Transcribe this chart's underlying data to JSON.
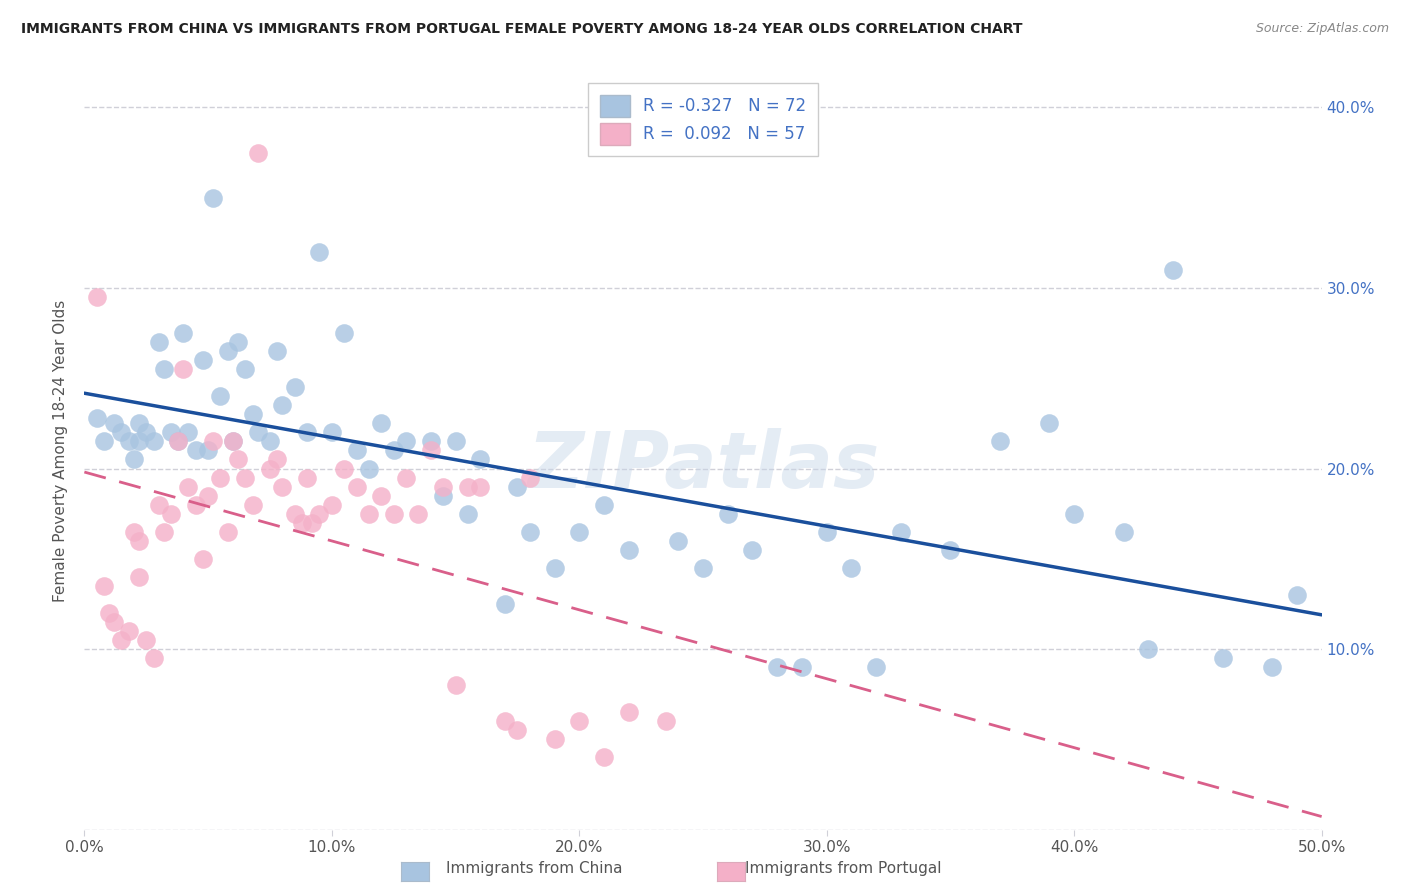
{
  "title": "IMMIGRANTS FROM CHINA VS IMMIGRANTS FROM PORTUGAL FEMALE POVERTY AMONG 18-24 YEAR OLDS CORRELATION CHART",
  "source": "Source: ZipAtlas.com",
  "ylabel": "Female Poverty Among 18-24 Year Olds",
  "xlim": [
    0.0,
    0.5
  ],
  "ylim": [
    0.0,
    0.42
  ],
  "xticks": [
    0.0,
    0.1,
    0.2,
    0.3,
    0.4,
    0.5
  ],
  "xticklabels": [
    "0.0%",
    "10.0%",
    "20.0%",
    "30.0%",
    "40.0%",
    "50.0%"
  ],
  "yticks": [
    0.0,
    0.1,
    0.2,
    0.3,
    0.4
  ],
  "yticklabels_right": [
    "",
    "10.0%",
    "20.0%",
    "30.0%",
    "40.0%"
  ],
  "china_R": "-0.327",
  "china_N": "72",
  "portugal_R": "0.092",
  "portugal_N": "57",
  "china_color": "#a8c4e0",
  "portugal_color": "#f4b0c8",
  "china_line_color": "#1a4f9c",
  "portugal_line_color": "#d95f8a",
  "legend_label_china": "Immigrants from China",
  "legend_label_portugal": "Immigrants from Portugal",
  "china_x": [
    0.005,
    0.008,
    0.012,
    0.015,
    0.018,
    0.02,
    0.022,
    0.022,
    0.025,
    0.028,
    0.03,
    0.032,
    0.035,
    0.038,
    0.04,
    0.042,
    0.045,
    0.048,
    0.05,
    0.052,
    0.055,
    0.058,
    0.06,
    0.062,
    0.065,
    0.068,
    0.07,
    0.075,
    0.078,
    0.08,
    0.085,
    0.09,
    0.095,
    0.1,
    0.105,
    0.11,
    0.115,
    0.12,
    0.125,
    0.13,
    0.14,
    0.145,
    0.15,
    0.155,
    0.16,
    0.17,
    0.175,
    0.18,
    0.19,
    0.2,
    0.21,
    0.22,
    0.24,
    0.25,
    0.26,
    0.27,
    0.28,
    0.29,
    0.3,
    0.31,
    0.32,
    0.33,
    0.35,
    0.37,
    0.39,
    0.4,
    0.42,
    0.43,
    0.44,
    0.46,
    0.48,
    0.49
  ],
  "china_y": [
    0.228,
    0.215,
    0.225,
    0.22,
    0.215,
    0.205,
    0.225,
    0.215,
    0.22,
    0.215,
    0.27,
    0.255,
    0.22,
    0.215,
    0.275,
    0.22,
    0.21,
    0.26,
    0.21,
    0.35,
    0.24,
    0.265,
    0.215,
    0.27,
    0.255,
    0.23,
    0.22,
    0.215,
    0.265,
    0.235,
    0.245,
    0.22,
    0.32,
    0.22,
    0.275,
    0.21,
    0.2,
    0.225,
    0.21,
    0.215,
    0.215,
    0.185,
    0.215,
    0.175,
    0.205,
    0.125,
    0.19,
    0.165,
    0.145,
    0.165,
    0.18,
    0.155,
    0.16,
    0.145,
    0.175,
    0.155,
    0.09,
    0.09,
    0.165,
    0.145,
    0.09,
    0.165,
    0.155,
    0.215,
    0.225,
    0.175,
    0.165,
    0.1,
    0.31,
    0.095,
    0.09,
    0.13
  ],
  "portugal_x": [
    0.005,
    0.008,
    0.01,
    0.012,
    0.015,
    0.018,
    0.02,
    0.022,
    0.022,
    0.025,
    0.028,
    0.03,
    0.032,
    0.035,
    0.038,
    0.04,
    0.042,
    0.045,
    0.048,
    0.05,
    0.052,
    0.055,
    0.058,
    0.06,
    0.062,
    0.065,
    0.068,
    0.07,
    0.075,
    0.078,
    0.08,
    0.085,
    0.088,
    0.09,
    0.092,
    0.095,
    0.1,
    0.105,
    0.11,
    0.115,
    0.12,
    0.125,
    0.13,
    0.135,
    0.14,
    0.145,
    0.15,
    0.155,
    0.16,
    0.17,
    0.175,
    0.18,
    0.19,
    0.2,
    0.21,
    0.22,
    0.235
  ],
  "portugal_y": [
    0.295,
    0.135,
    0.12,
    0.115,
    0.105,
    0.11,
    0.165,
    0.16,
    0.14,
    0.105,
    0.095,
    0.18,
    0.165,
    0.175,
    0.215,
    0.255,
    0.19,
    0.18,
    0.15,
    0.185,
    0.215,
    0.195,
    0.165,
    0.215,
    0.205,
    0.195,
    0.18,
    0.375,
    0.2,
    0.205,
    0.19,
    0.175,
    0.17,
    0.195,
    0.17,
    0.175,
    0.18,
    0.2,
    0.19,
    0.175,
    0.185,
    0.175,
    0.195,
    0.175,
    0.21,
    0.19,
    0.08,
    0.19,
    0.19,
    0.06,
    0.055,
    0.195,
    0.05,
    0.06,
    0.04,
    0.065,
    0.06
  ],
  "background_color": "#ffffff",
  "grid_color": "#d0d0d8",
  "watermark_text": "ZIPatlas",
  "watermark_color": "#c5d5e8",
  "watermark_alpha": 0.45,
  "title_color": "#222222",
  "axis_color": "#555555",
  "right_axis_color": "#4472c4",
  "legend_edge_color": "#cccccc"
}
